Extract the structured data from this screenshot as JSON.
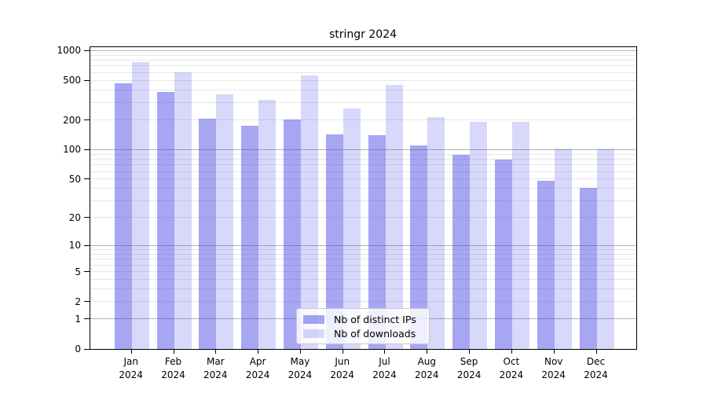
{
  "chart_data": {
    "type": "bar",
    "title": "stringr 2024",
    "months": [
      "Jan",
      "Feb",
      "Mar",
      "Apr",
      "May",
      "Jun",
      "Jul",
      "Aug",
      "Sep",
      "Oct",
      "Nov",
      "Dec"
    ],
    "year": "2024",
    "series": [
      {
        "key": "distinct-ips",
        "name": "Nb of distinct IPs",
        "color_hex": "#a6a6f2",
        "bar_rgba": "rgba(60,60,228,0.46)",
        "values": [
          470,
          385,
          205,
          175,
          203,
          142,
          140,
          110,
          88,
          80,
          48,
          41
        ]
      },
      {
        "key": "downloads",
        "name": "Nb of downloads",
        "color_hex": "#d9d9f8",
        "bar_rgba": "rgba(60,60,228,0.20)",
        "values": [
          760,
          600,
          360,
          320,
          560,
          260,
          450,
          215,
          190,
          192,
          102,
          102
        ]
      }
    ],
    "yscale": "log10(1+x)",
    "y_ticks": [
      0,
      1,
      2,
      5,
      10,
      20,
      50,
      100,
      200,
      500,
      1000
    ],
    "ylim": [
      0,
      1080
    ],
    "grid": {
      "horizontal": true,
      "major_color": "#b3b3b3",
      "minor_color": "#e7e7e7"
    },
    "legend_position": "bottom-center",
    "axis_color": "#000000",
    "background": "#ffffff"
  }
}
